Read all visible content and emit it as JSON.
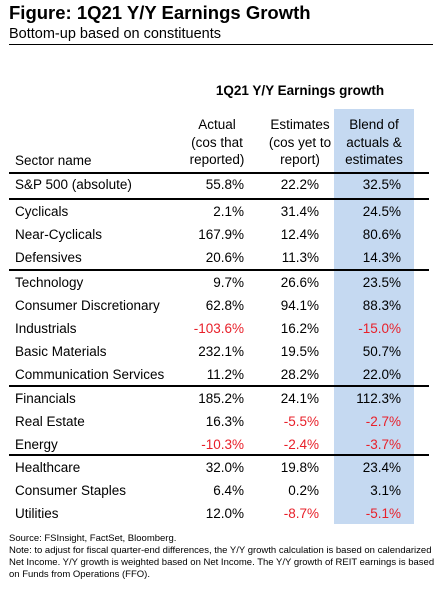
{
  "figure": {
    "title": "Figure: 1Q21 Y/Y Earnings Growth",
    "subtitle": "Bottom-up based on constituents"
  },
  "table": {
    "group_header": "1Q21 Y/Y Earnings growth",
    "sector_header": "Sector name",
    "col_actual": "Actual\n(cos that\nreported)",
    "col_estimates": "Estimates\n(cos yet to\nreport)",
    "col_blend": "Blend of\nactuals &\nestimates",
    "colors": {
      "blend_bg": "#c5d9f1",
      "negative": "#e8202a"
    },
    "rows": [
      {
        "name": "S&P 500 (absolute)",
        "actual": "55.8%",
        "estimates": "22.2%",
        "blend": "32.5%"
      },
      {
        "name": "Cyclicals",
        "actual": "2.1%",
        "estimates": "31.4%",
        "blend": "24.5%"
      },
      {
        "name": "Near-Cyclicals",
        "actual": "167.9%",
        "estimates": "12.4%",
        "blend": "80.6%"
      },
      {
        "name": "Defensives",
        "actual": "20.6%",
        "estimates": "11.3%",
        "blend": "14.3%"
      },
      {
        "name": "Technology",
        "actual": "9.7%",
        "estimates": "26.6%",
        "blend": "23.5%"
      },
      {
        "name": "Consumer Discretionary",
        "actual": "62.8%",
        "estimates": "94.1%",
        "blend": "88.3%"
      },
      {
        "name": "Industrials",
        "actual": "-103.6%",
        "estimates": "16.2%",
        "blend": "-15.0%"
      },
      {
        "name": "Basic Materials",
        "actual": "232.1%",
        "estimates": "19.5%",
        "blend": "50.7%"
      },
      {
        "name": "Communication Services",
        "actual": "11.2%",
        "estimates": "28.2%",
        "blend": "22.0%"
      },
      {
        "name": "Financials",
        "actual": "185.2%",
        "estimates": "24.1%",
        "blend": "112.3%"
      },
      {
        "name": "Real Estate",
        "actual": "16.3%",
        "estimates": "-5.5%",
        "blend": "-2.7%"
      },
      {
        "name": "Energy",
        "actual": "-10.3%",
        "estimates": "-2.4%",
        "blend": "-3.7%"
      },
      {
        "name": "Healthcare",
        "actual": "32.0%",
        "estimates": "19.8%",
        "blend": "23.4%"
      },
      {
        "name": "Consumer Staples",
        "actual": "6.4%",
        "estimates": "0.2%",
        "blend": "3.1%"
      },
      {
        "name": "Utilities",
        "actual": "12.0%",
        "estimates": "-8.7%",
        "blend": "-5.1%"
      }
    ]
  },
  "footnotes": {
    "source": "Source: FSInsight, FactSet, Bloomberg.",
    "note1": "Note: to adjust for fiscal quarter-end differences, the Y/Y growth calculation is based on calendarized",
    "note2": "Net Income. Y/Y growth is weighted based on Net Income. The Y/Y growth of REIT earnings is based",
    "note3": "on Funds from Operations (FFO)."
  }
}
